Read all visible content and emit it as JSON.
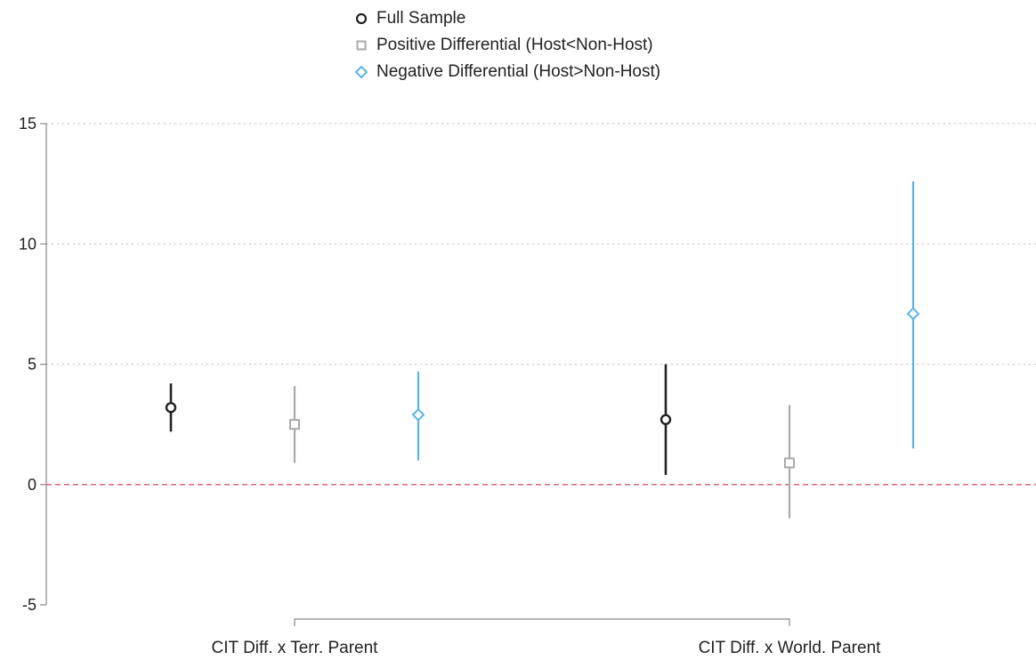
{
  "chart_data": {
    "type": "scatter",
    "subtype": "coefficient-plot-with-confidence-intervals",
    "title": "",
    "xlabel": "",
    "ylabel": "",
    "ylim": [
      -5,
      15
    ],
    "yticks": [
      -5,
      0,
      5,
      10,
      15
    ],
    "grid": true,
    "reference_line": 0,
    "legend_position": "top",
    "categories": [
      "CIT Diff. x Terr. Parent",
      "CIT Diff. x World. Parent"
    ],
    "series": [
      {
        "name": "Full Sample",
        "marker": "circle",
        "color": "#222222",
        "values": [
          3.2,
          2.7
        ],
        "ci_low": [
          2.2,
          0.4
        ],
        "ci_high": [
          4.2,
          5.0
        ]
      },
      {
        "name": "Positive Differential (Host<Non-Host)",
        "marker": "square",
        "color": "#aaaaaa",
        "values": [
          2.5,
          0.9
        ],
        "ci_low": [
          0.9,
          -1.4
        ],
        "ci_high": [
          4.1,
          3.3
        ]
      },
      {
        "name": "Negative Differential (Host>Non-Host)",
        "marker": "diamond",
        "color": "#5ab4e6",
        "values": [
          2.9,
          7.1
        ],
        "ci_low": [
          1.0,
          1.5
        ],
        "ci_high": [
          4.7,
          12.6
        ]
      }
    ]
  }
}
